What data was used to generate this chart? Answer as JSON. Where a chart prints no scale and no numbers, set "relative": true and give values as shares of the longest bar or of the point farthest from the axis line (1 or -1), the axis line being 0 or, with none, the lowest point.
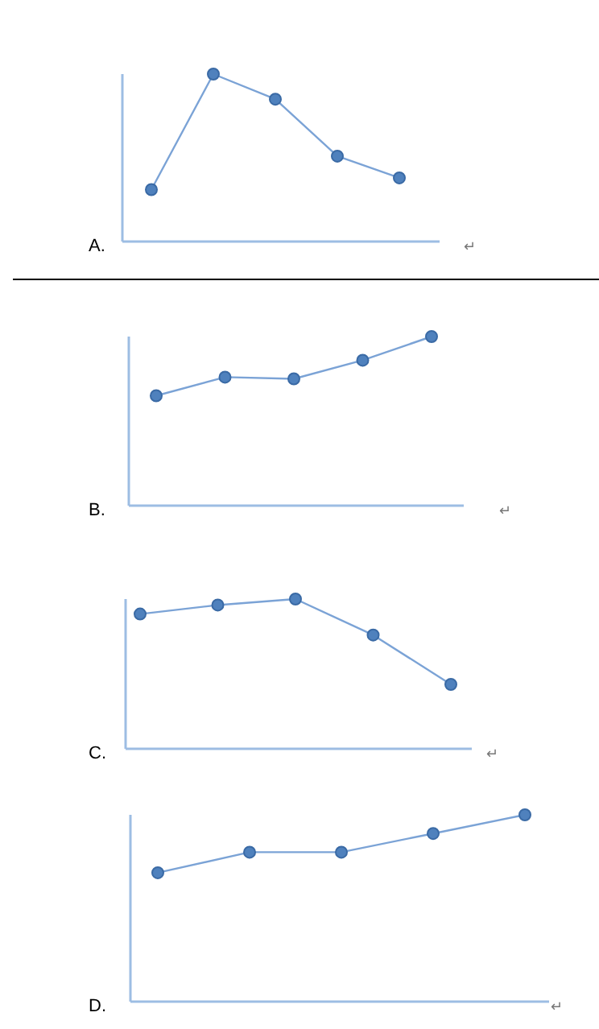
{
  "chart_data": [
    {
      "type": "line",
      "relative": true,
      "marker": "circle",
      "categories": [
        null,
        null,
        null,
        null,
        null
      ],
      "series": [
        {
          "color": "#7ba3d6",
          "values": [
            0.31,
            1,
            0.85,
            0.51,
            0.38
          ]
        }
      ],
      "annotations": [
        "A.",
        "↵"
      ]
    },
    {
      "type": "line",
      "relative": true,
      "marker": "circle",
      "categories": [
        null,
        null,
        null,
        null,
        null
      ],
      "series": [
        {
          "color": "#7ba3d6",
          "values": [
            0.65,
            0.76,
            0.75,
            0.86,
            1
          ]
        }
      ],
      "annotations": [
        "B.",
        "↵"
      ]
    },
    {
      "type": "line",
      "relative": true,
      "marker": "circle",
      "categories": [
        null,
        null,
        null,
        null,
        null
      ],
      "series": [
        {
          "color": "#7ba3d6",
          "values": [
            0.9,
            0.96,
            1,
            0.76,
            0.43
          ]
        }
      ],
      "annotations": [
        "C.",
        "↵"
      ]
    },
    {
      "type": "line",
      "relative": true,
      "marker": "circle",
      "categories": [
        null,
        null,
        null,
        null,
        null
      ],
      "series": [
        {
          "color": "#7ba3d6",
          "values": [
            0.69,
            0.8,
            0.8,
            0.9,
            1
          ]
        }
      ],
      "annotations": [
        "D.",
        "↵"
      ]
    }
  ]
}
